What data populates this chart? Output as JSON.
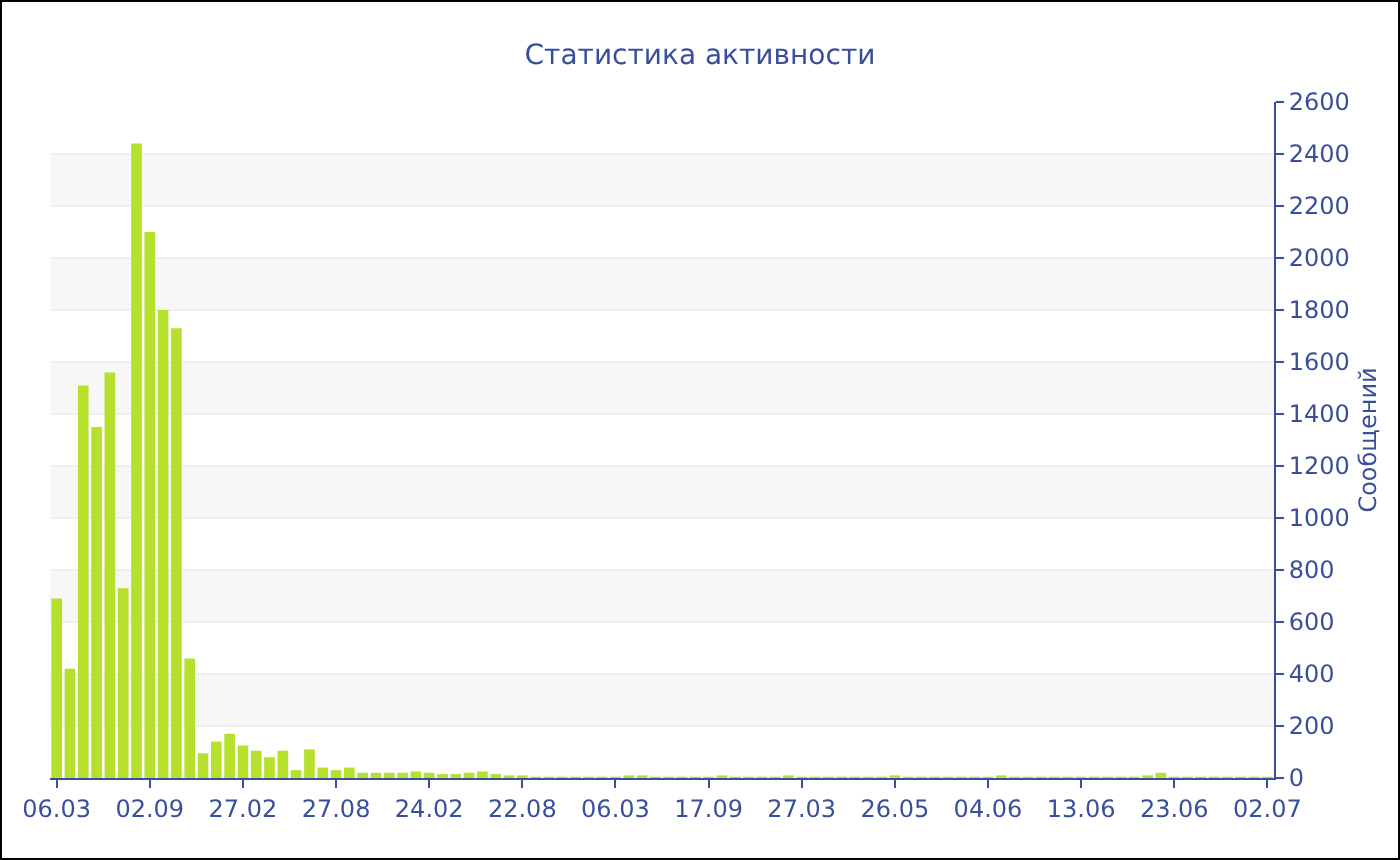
{
  "chart_data": {
    "type": "bar",
    "title": "Статистика активности",
    "ylabel": "Сообщений",
    "categories": [
      "06.03",
      null,
      null,
      null,
      null,
      null,
      null,
      "02.09",
      null,
      null,
      null,
      null,
      null,
      null,
      "27.02",
      null,
      null,
      null,
      null,
      null,
      null,
      "27.08",
      null,
      null,
      null,
      null,
      null,
      null,
      "24.02",
      null,
      null,
      null,
      null,
      null,
      null,
      "22.08",
      null,
      null,
      null,
      null,
      null,
      null,
      "06.03",
      null,
      null,
      null,
      null,
      null,
      null,
      "17.09",
      null,
      null,
      null,
      null,
      null,
      null,
      "27.03",
      null,
      null,
      null,
      null,
      null,
      null,
      "26.05",
      null,
      null,
      null,
      null,
      null,
      null,
      "04.06",
      null,
      null,
      null,
      null,
      null,
      null,
      "13.06",
      null,
      null,
      null,
      null,
      null,
      null,
      "23.06",
      null,
      null,
      null,
      null,
      null,
      null,
      "02.07"
    ],
    "values": [
      690,
      420,
      1510,
      1350,
      1560,
      730,
      2440,
      2100,
      1800,
      1730,
      460,
      95,
      140,
      170,
      125,
      105,
      80,
      105,
      30,
      110,
      40,
      30,
      40,
      20,
      20,
      20,
      20,
      25,
      20,
      15,
      15,
      20,
      25,
      15,
      10,
      10,
      5,
      5,
      5,
      5,
      5,
      5,
      5,
      10,
      10,
      5,
      5,
      5,
      5,
      5,
      10,
      5,
      5,
      5,
      5,
      10,
      5,
      5,
      5,
      5,
      5,
      5,
      5,
      10,
      5,
      5,
      5,
      5,
      5,
      5,
      5,
      10,
      5,
      5,
      5,
      5,
      5,
      5,
      5,
      5,
      5,
      5,
      10,
      20,
      5,
      5,
      5,
      5,
      5,
      5,
      5,
      5
    ],
    "color": "#b5e02b",
    "ylim": [
      0,
      2600
    ],
    "yticks": [
      0,
      200,
      400,
      600,
      800,
      1000,
      1200,
      1400,
      1600,
      1800,
      2000,
      2200,
      2400,
      2600
    ],
    "grid": "y",
    "legend": false
  }
}
